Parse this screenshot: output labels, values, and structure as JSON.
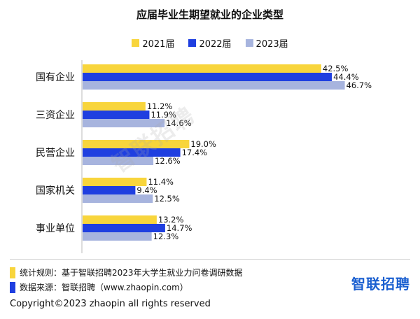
{
  "chart_data": {
    "type": "bar",
    "orientation": "horizontal",
    "title": "应届毕业生期望就业的企业类型",
    "categories": [
      "国有企业",
      "三资企业",
      "民营企业",
      "国家机关",
      "事业单位"
    ],
    "series": [
      {
        "name": "2021届",
        "color": "#F8D53C",
        "values": [
          42.5,
          11.2,
          19.0,
          11.4,
          13.2
        ],
        "labels": [
          "42.5%",
          "11.2%",
          "19.0%",
          "11.4%",
          "13.2%"
        ]
      },
      {
        "name": "2022届",
        "color": "#1F3FE0",
        "values": [
          44.4,
          11.9,
          17.4,
          9.4,
          14.7
        ],
        "labels": [
          "44.4%",
          "11.9%",
          "17.4%",
          "9.4%",
          "14.7%"
        ]
      },
      {
        "name": "2023届",
        "color": "#A7B4DE",
        "values": [
          46.7,
          14.6,
          12.6,
          12.5,
          12.3
        ],
        "labels": [
          "46.7%",
          "14.6%",
          "12.6%",
          "12.5%",
          "12.3%"
        ]
      }
    ],
    "xlim": [
      0,
      48
    ],
    "grid": false,
    "legend_position": "top"
  },
  "watermark": "智联招聘",
  "notes": [
    {
      "text": "统计规则：基于智联招聘2023年大学生就业力问卷调研数据",
      "color": "#F8D53C"
    },
    {
      "text": "数据来源：智联招聘（www.zhaopin.com）",
      "color": "#1F3FE0"
    }
  ],
  "brand": "智联招聘",
  "copyright": "Copyright©2023 zhaopin all rights reserved"
}
